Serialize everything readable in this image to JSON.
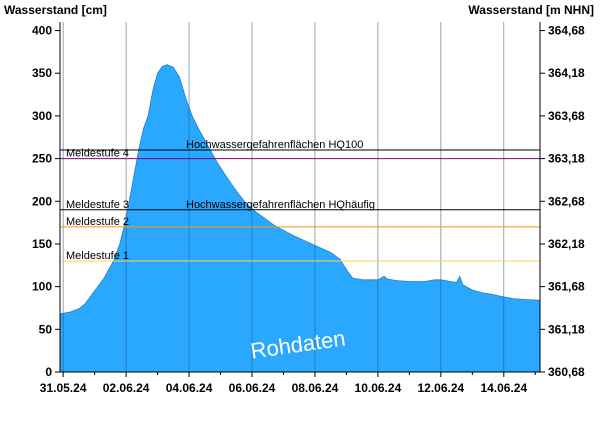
{
  "chart_data": {
    "type": "area",
    "title": "",
    "ylabel_left": "Wasserstand [cm]",
    "ylabel_right": "Wasserstand [m NHN]",
    "ylim": [
      0,
      410
    ],
    "yticks": [
      0,
      50,
      100,
      150,
      200,
      250,
      300,
      350,
      400
    ],
    "right_ticks": [
      "364,68",
      "364,18",
      "363,68",
      "363,18",
      "362,68",
      "362,18",
      "361,68",
      "361,18",
      "360,68"
    ],
    "x_labels": [
      "31.05.24",
      "02.06.24",
      "04.06.24",
      "06.06.24",
      "08.06.24",
      "10.06.24",
      "12.06.24",
      "14.06.24"
    ],
    "x_range_days": [
      -0.1,
      15.15
    ],
    "grid": "vertical at x labels",
    "series": [
      {
        "color": "#2aa8ff",
        "points": [
          [
            -0.1,
            68
          ],
          [
            0.2,
            70
          ],
          [
            0.5,
            74
          ],
          [
            0.7,
            80
          ],
          [
            1.0,
            95
          ],
          [
            1.3,
            110
          ],
          [
            1.6,
            130
          ],
          [
            1.8,
            150
          ],
          [
            2.0,
            180
          ],
          [
            2.2,
            220
          ],
          [
            2.4,
            260
          ],
          [
            2.55,
            285
          ],
          [
            2.7,
            300
          ],
          [
            2.85,
            330
          ],
          [
            3.0,
            350
          ],
          [
            3.15,
            358
          ],
          [
            3.3,
            360
          ],
          [
            3.5,
            357
          ],
          [
            3.7,
            345
          ],
          [
            3.9,
            320
          ],
          [
            4.1,
            300
          ],
          [
            4.3,
            285
          ],
          [
            4.6,
            265
          ],
          [
            4.9,
            245
          ],
          [
            5.2,
            228
          ],
          [
            5.5,
            212
          ],
          [
            5.8,
            198
          ],
          [
            6.1,
            188
          ],
          [
            6.4,
            180
          ],
          [
            6.7,
            172
          ],
          [
            7.0,
            166
          ],
          [
            7.3,
            160
          ],
          [
            7.6,
            155
          ],
          [
            7.9,
            150
          ],
          [
            8.2,
            145
          ],
          [
            8.5,
            140
          ],
          [
            8.8,
            132
          ],
          [
            9.0,
            120
          ],
          [
            9.2,
            110
          ],
          [
            9.5,
            108
          ],
          [
            9.8,
            108
          ],
          [
            10.0,
            108
          ],
          [
            10.2,
            112
          ],
          [
            10.3,
            109
          ],
          [
            10.6,
            107
          ],
          [
            11.0,
            106
          ],
          [
            11.5,
            106
          ],
          [
            11.8,
            108
          ],
          [
            12.0,
            108
          ],
          [
            12.3,
            106
          ],
          [
            12.5,
            105
          ],
          [
            12.6,
            112
          ],
          [
            12.7,
            102
          ],
          [
            13.0,
            96
          ],
          [
            13.3,
            93
          ],
          [
            13.6,
            91
          ],
          [
            14.0,
            88
          ],
          [
            14.3,
            86
          ],
          [
            14.6,
            85
          ],
          [
            15.15,
            84
          ]
        ]
      }
    ],
    "reference_lines": [
      {
        "label": "Meldestufe 4",
        "value": 250,
        "color": "#800080"
      },
      {
        "label": "Hochwassergefahrenflächen HQ100",
        "value": 260,
        "color": "#000000"
      },
      {
        "label": "Meldestufe 3",
        "value": 190,
        "color": "#000000"
      },
      {
        "label": "Hochwassergefahrenflächen HQhäufig",
        "value": 190,
        "color": "#000000"
      },
      {
        "label": "Meldestufe 2",
        "value": 170,
        "color": "#ff9900"
      },
      {
        "label": "Meldestufe 1",
        "value": 130,
        "color": "#ffd24d"
      }
    ],
    "watermark": "Rohdaten"
  }
}
